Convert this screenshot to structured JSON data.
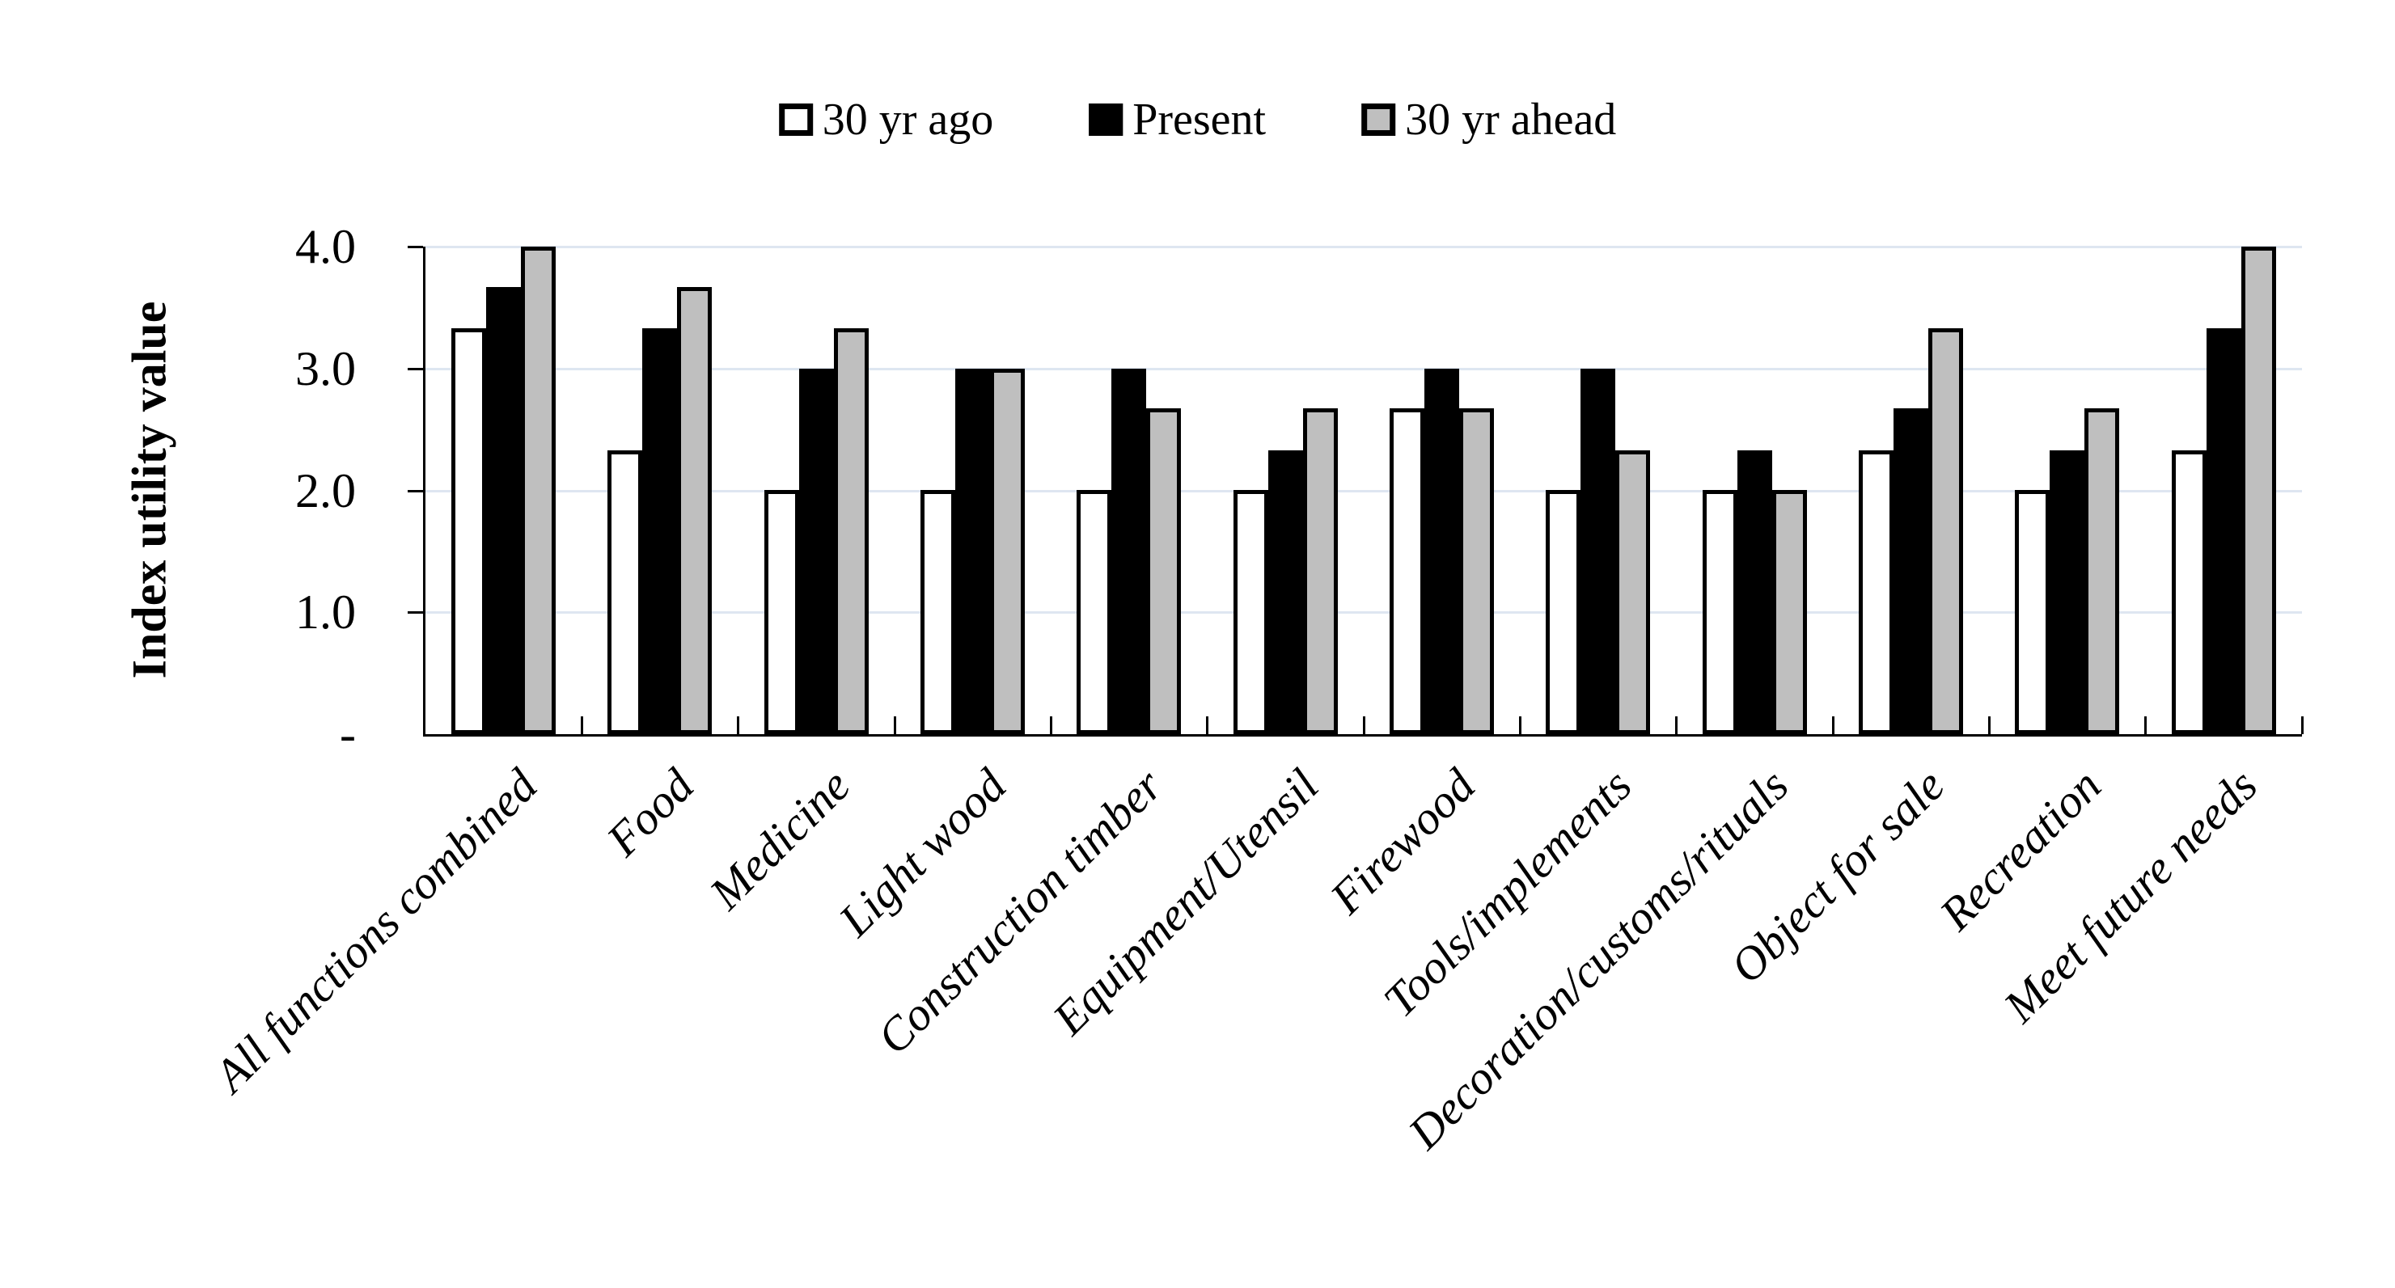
{
  "colors": {
    "background": "#ffffff",
    "gridline": "#dee6f1",
    "axis": "#000000",
    "bar_outline": "#000000"
  },
  "chart_data": {
    "type": "bar",
    "title": "",
    "xlabel": "",
    "ylabel": "Index utility value",
    "ylim": [
      0,
      4
    ],
    "grid": true,
    "legend_position": "top-center",
    "y_ticks": [
      {
        "value": 4,
        "label": "4.0"
      },
      {
        "value": 3,
        "label": "3.0"
      },
      {
        "value": 2,
        "label": "2.0"
      },
      {
        "value": 1,
        "label": "1.0"
      },
      {
        "value": 0,
        "label": "-"
      }
    ],
    "gridlines_at": [
      1,
      2,
      3,
      4
    ],
    "categories": [
      "All functions combined",
      "Food",
      "Medicine",
      "Light wood",
      "Construction timber",
      "Equipment/Utensil",
      "Firewood",
      "Tools/implements",
      "Decoration/customs/rituals",
      "Object for sale",
      "Recreation",
      "Meet future needs"
    ],
    "series": [
      {
        "name": "30 yr ago",
        "fill": "#ffffff",
        "values": [
          3.33,
          2.33,
          2.0,
          2.0,
          2.0,
          2.0,
          2.67,
          2.0,
          2.0,
          2.33,
          2.0,
          2.33
        ]
      },
      {
        "name": "Present",
        "fill": "#000000",
        "values": [
          3.67,
          3.33,
          3.0,
          3.0,
          3.0,
          2.33,
          3.0,
          3.0,
          2.33,
          2.67,
          2.33,
          3.33
        ]
      },
      {
        "name": "30 yr ahead",
        "fill": "#bfbfbf",
        "values": [
          4.0,
          3.67,
          3.33,
          3.0,
          2.67,
          2.67,
          2.67,
          2.33,
          2.0,
          3.33,
          2.67,
          4.0
        ]
      }
    ]
  }
}
